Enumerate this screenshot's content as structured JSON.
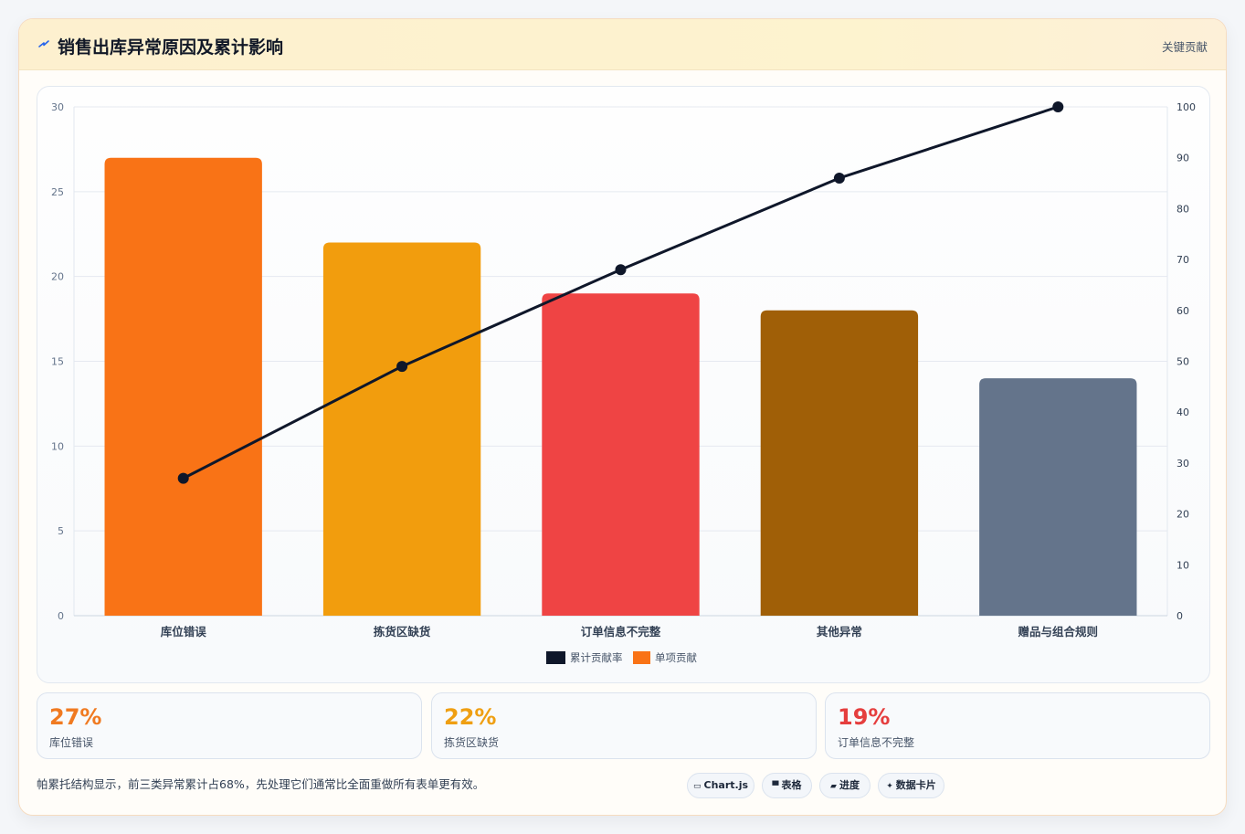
{
  "header": {
    "title": "销售出库异常原因及累计影响",
    "tag": "关键贡献"
  },
  "colors": {
    "line": "#0f172a",
    "legend_bar": "#f97316"
  },
  "chart_data": {
    "type": "bar",
    "categories": [
      "库位错误",
      "拣货区缺货",
      "订单信息不完整",
      "其他异常",
      "赠品与组合规则"
    ],
    "bar_colors": [
      "#f97316",
      "#f29d0d",
      "#ef4444",
      "#a05f07",
      "#64748b"
    ],
    "series": [
      {
        "name": "单项贡献",
        "type": "bar",
        "axis": "left",
        "values": [
          27,
          22,
          19,
          18,
          14
        ]
      },
      {
        "name": "累计贡献率",
        "type": "line",
        "axis": "right",
        "values": [
          27,
          49,
          68,
          86,
          100
        ]
      }
    ],
    "ylim_left": [
      0,
      30
    ],
    "yticks_left": [
      "0",
      "5",
      "10",
      "15",
      "20",
      "25",
      "30"
    ],
    "ylim_right": [
      0,
      100
    ],
    "yticks_right": [
      "0",
      "10",
      "20",
      "30",
      "40",
      "50",
      "60",
      "70",
      "80",
      "90",
      "100"
    ],
    "legend": [
      "累计贡献率",
      "单项贡献"
    ],
    "legend_position": "bottom",
    "grid": true
  },
  "stats": [
    {
      "value": "27%",
      "label": "库位错误",
      "color": "#f07a21"
    },
    {
      "value": "22%",
      "label": "拣货区缺货",
      "color": "#ef9f12"
    },
    {
      "value": "19%",
      "label": "订单信息不完整",
      "color": "#e53e3e"
    }
  ],
  "footer": {
    "note": "帕累托结构显示，前三类异常累计占68%，先处理它们通常比全面重做所有表单更有效。",
    "chips": [
      {
        "icon": "▭",
        "label": "Chart.js"
      },
      {
        "icon": "▀",
        "label": "表格"
      },
      {
        "icon": "▰",
        "label": "进度"
      },
      {
        "icon": "✦",
        "label": "数据卡片"
      }
    ]
  }
}
